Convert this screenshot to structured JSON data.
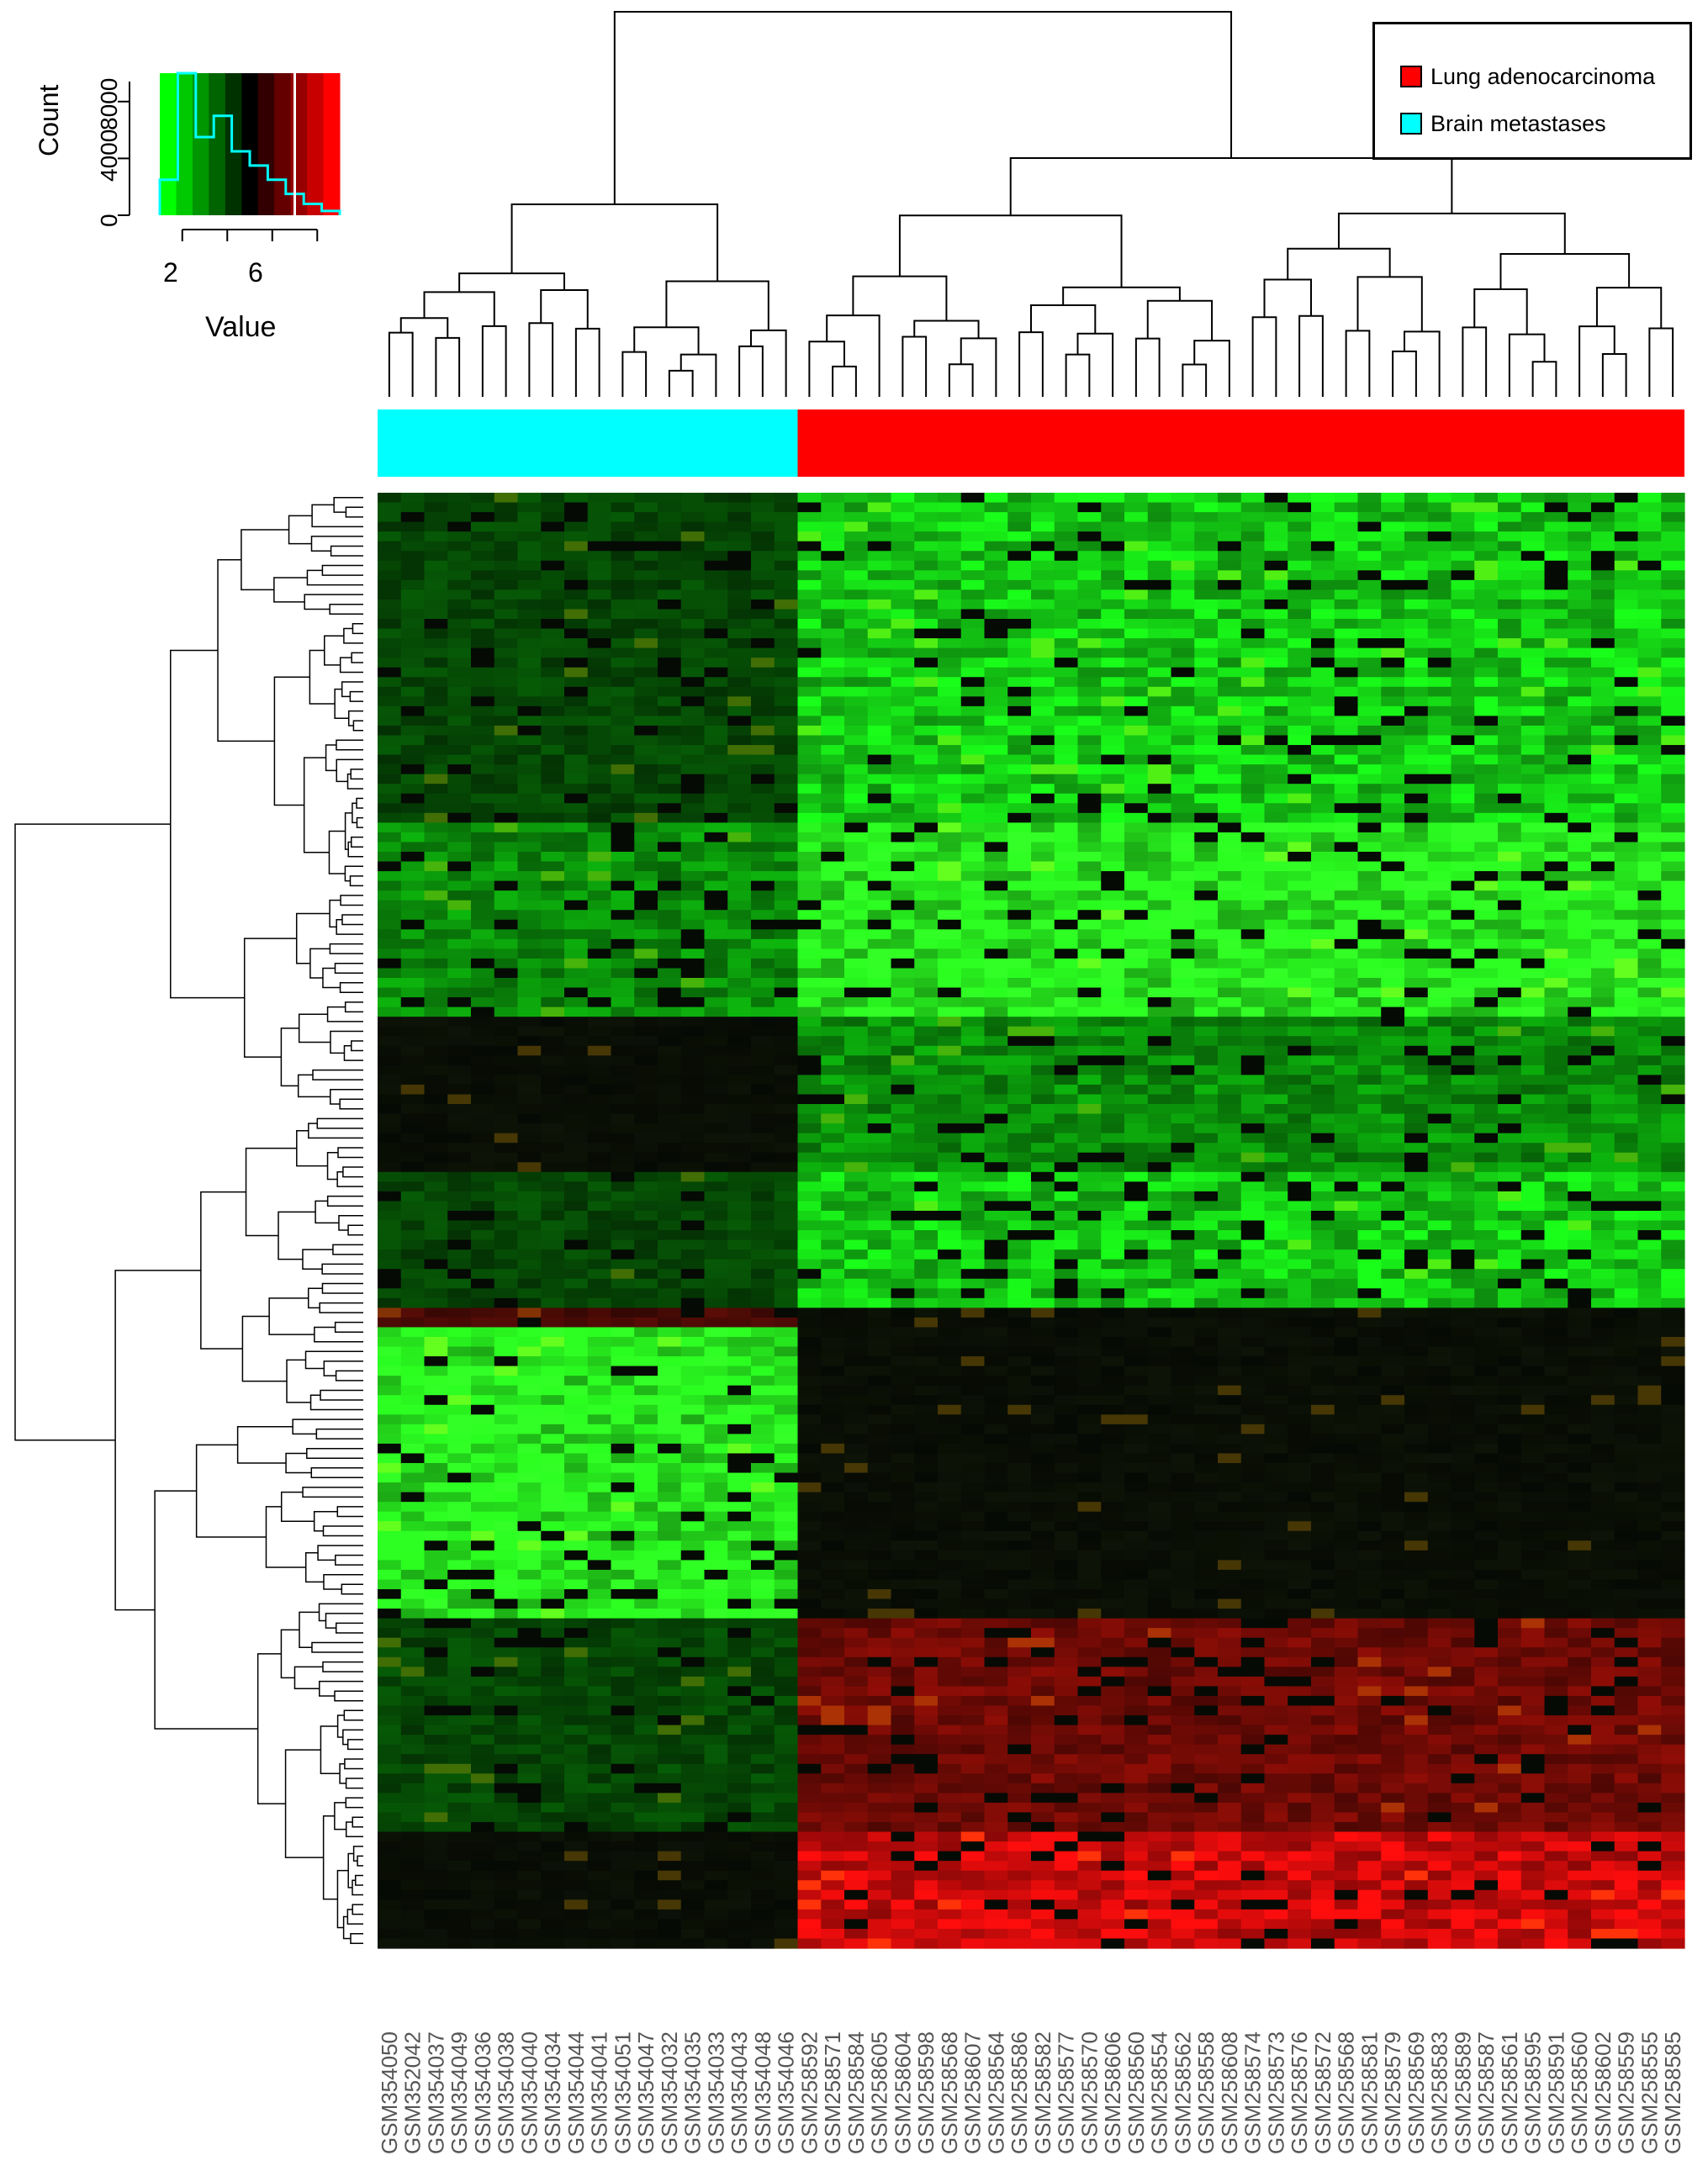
{
  "chart_data": {
    "type": "heatmap",
    "legend": {
      "placement": "top-right",
      "items": [
        {
          "label": "Lung adenocarcinoma",
          "color": "#ff0000"
        },
        {
          "label": "Brain metastases",
          "color": "#00ffff"
        }
      ]
    },
    "color_key": {
      "xlabel": "Value",
      "ylabel": "Count",
      "x_ticks": [
        "2",
        "6"
      ],
      "y_ticks": [
        "0",
        "4000",
        "8000"
      ],
      "xlim": [
        1,
        9
      ],
      "ylim": [
        0,
        10000
      ],
      "colors": [
        "#00ff00",
        "#00c800",
        "#009600",
        "#006400",
        "#003200",
        "#000000",
        "#320000",
        "#640000",
        "#960000",
        "#c80000",
        "#ff0000"
      ],
      "histogram_counts": [
        2500,
        10000,
        5500,
        7000,
        4500,
        3500,
        2500,
        1500,
        800,
        300
      ],
      "mean_line": 7
    },
    "groups": {
      "Brain metastases": [
        "GSM354050",
        "GSM352042",
        "GSM354037",
        "GSM354049",
        "GSM354036",
        "GSM354038",
        "GSM354040",
        "GSM354034",
        "GSM354044",
        "GSM354041",
        "GSM354051",
        "GSM354047",
        "GSM354032",
        "GSM354035",
        "GSM354033",
        "GSM354043",
        "GSM354048",
        "GSM354046"
      ],
      "Lung adenocarcinoma": [
        "GSM258592",
        "GSM258571",
        "GSM258584",
        "GSM258605",
        "GSM258604",
        "GSM258598",
        "GSM258568",
        "GSM258607",
        "GSM258564",
        "GSM258586",
        "GSM258582",
        "GSM258577",
        "GSM258570",
        "GSM258606",
        "GSM258560",
        "GSM258554",
        "GSM258562",
        "GSM258558",
        "GSM258608",
        "GSM258574",
        "GSM258573",
        "GSM258576",
        "GSM258572",
        "GSM258568",
        "GSM258581",
        "GSM258579",
        "GSM258569",
        "GSM258583",
        "GSM258589",
        "GSM258587",
        "GSM258561",
        "GSM258595",
        "GSM258591",
        "GSM258560",
        "GSM258602",
        "GSM258559",
        "GSM258555",
        "GSM258585"
      ]
    },
    "column_labels": [
      "GSM354050",
      "GSM352042",
      "GSM354037",
      "GSM354049",
      "GSM354036",
      "GSM354038",
      "GSM354040",
      "GSM354034",
      "GSM354044",
      "GSM354041",
      "GSM354051",
      "GSM354047",
      "GSM354032",
      "GSM354035",
      "GSM354033",
      "GSM354043",
      "GSM354048",
      "GSM354046",
      "GSM258592",
      "GSM258571",
      "GSM258584",
      "GSM258605",
      "GSM258604",
      "GSM258598",
      "GSM258568",
      "GSM258607",
      "GSM258564",
      "GSM258586",
      "GSM258582",
      "GSM258577",
      "GSM258570",
      "GSM258606",
      "GSM258560",
      "GSM258554",
      "GSM258562",
      "GSM258558",
      "GSM258608",
      "GSM258574",
      "GSM258573",
      "GSM258576",
      "GSM258572",
      "GSM258568",
      "GSM258581",
      "GSM258579",
      "GSM258569",
      "GSM258583",
      "GSM258589",
      "GSM258587",
      "GSM258561",
      "GSM258595",
      "GSM258591",
      "GSM258560",
      "GSM258602",
      "GSM258559",
      "GSM258555",
      "GSM258585"
    ],
    "row_blocks": [
      {
        "rows": 34,
        "brain": "dark-green",
        "lung": "green"
      },
      {
        "rows": 20,
        "brain": "medium-green",
        "lung": "bright-green"
      },
      {
        "rows": 16,
        "brain": "black",
        "lung": "medium-green"
      },
      {
        "rows": 14,
        "brain": "dark-green",
        "lung": "green"
      },
      {
        "rows": 2,
        "brain": "red-black",
        "lung": "black"
      },
      {
        "rows": 30,
        "brain": "bright-green",
        "lung": "black"
      },
      {
        "rows": 22,
        "brain": "dark-green",
        "lung": "dark-red"
      },
      {
        "rows": 12,
        "brain": "black",
        "lung": "red"
      }
    ]
  }
}
